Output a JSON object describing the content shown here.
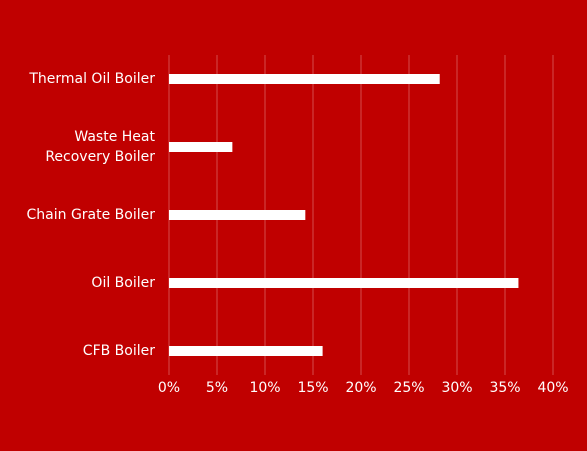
{
  "chart_data": {
    "type": "barh",
    "categories": [
      "Thermal Oil Boiler",
      "Waste Heat \nRecovery Boiler",
      "Chain Grate Boiler",
      "Oil Boiler",
      "CFB Boiler"
    ],
    "values": [
      28.2,
      6.6,
      14.2,
      36.4,
      16.0
    ],
    "color": "#ffffff",
    "background": "#c00000",
    "xlim": [
      0,
      40
    ],
    "xticks": [
      {
        "value": 0,
        "label": "0%"
      },
      {
        "value": 5,
        "label": "5%"
      },
      {
        "value": 10,
        "label": "10%"
      },
      {
        "value": 15,
        "label": "15%"
      },
      {
        "value": 20,
        "label": "20%"
      },
      {
        "value": 25,
        "label": "25%"
      },
      {
        "value": 30,
        "label": "30%"
      },
      {
        "value": 35,
        "label": "35%"
      },
      {
        "value": 40,
        "label": "40%"
      }
    ],
    "grid": true
  }
}
